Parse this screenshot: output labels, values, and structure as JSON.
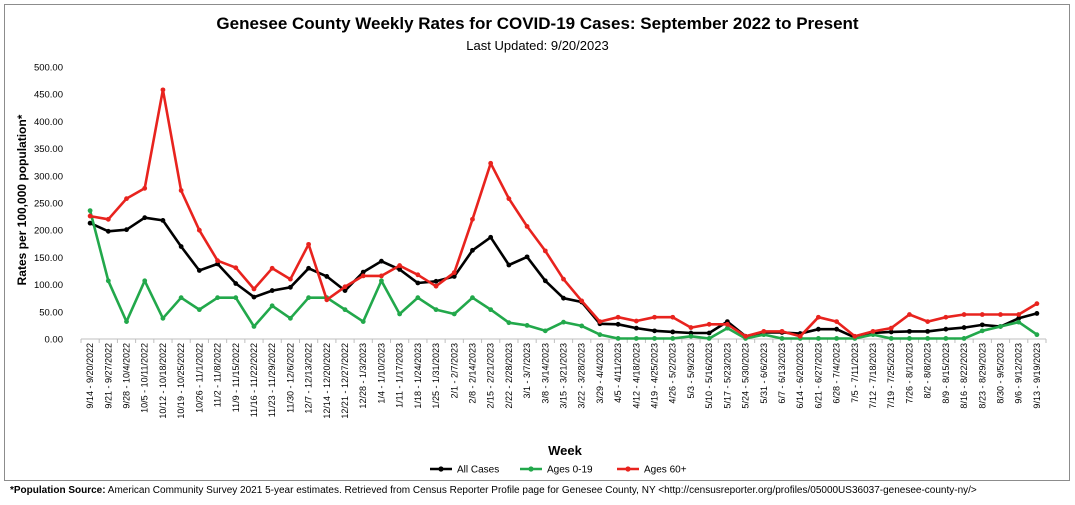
{
  "chart_data": {
    "type": "line",
    "title": "Genesee County Weekly Rates for COVID-19 Cases: September 2022 to Present",
    "subtitle": "Last Updated: 9/20/2023",
    "xlabel": "Week",
    "ylabel": "Rates per 100,000 population*",
    "ylim": [
      0,
      500
    ],
    "yticks": [
      "0.00",
      "50.00",
      "100.00",
      "150.00",
      "200.00",
      "250.00",
      "300.00",
      "350.00",
      "400.00",
      "450.00",
      "500.00"
    ],
    "grid": false,
    "legend": "bottom",
    "categories": [
      "9/14 - 9/20/2022",
      "9/21 - 9/27/2022",
      "9/28 - 10/4/2022",
      "10/5 - 10/11/2022",
      "10/12 - 10/18/2022",
      "10/19 - 10/25/2022",
      "10/26 - 11/1/2022",
      "11/2 - 11/8/2022",
      "11/9 - 11/15/2022",
      "11/16 - 11/22/2022",
      "11/23 - 11/29/2022",
      "11/30 - 12/6/2022",
      "12/7 - 12/13/2022",
      "12/14 - 12/20/2022",
      "12/21 - 12/27/2022",
      "12/28 - 1/3/2023",
      "1/4 - 1/10/2023",
      "1/11 - 1/17/2023",
      "1/18 - 1/24/2023",
      "1/25 - 1/31/2023",
      "2/1 - 2/7/2023",
      "2/8 - 2/14/2023",
      "2/15 - 2/21/2023",
      "2/22 - 2/28/2023",
      "3/1 - 3/7/2023",
      "3/8 - 3/14/2023",
      "3/15 - 3/21/2023",
      "3/22 - 3/28/2023",
      "3/29 - 4/4/2023",
      "4/5 - 4/11/2023",
      "4/12 - 4/18/2023",
      "4/19 - 4/25/2023",
      "4/26 - 5/2/2023",
      "5/3 - 5/9/2023",
      "5/10 - 5/16/2023",
      "5/17 - 5/23/2023",
      "5/24 - 5/30/2023",
      "5/31 - 6/6/2023",
      "6/7 - 6/13/2023",
      "6/14 - 6/20/2023",
      "6/21 - 6/27/2023",
      "6/28 - 7/4/2023",
      "7/5 - 7/11/2023",
      "7/12 - 7/18/2023",
      "7/19 - 7/25/2023",
      "7/26 - 8/1/2023",
      "8/2 - 8/8/2023",
      "8/9 - 8/15/2023",
      "8/16 - 8/22/2023",
      "8/23 - 8/29/2023",
      "8/30 - 9/5/2023",
      "9/6 - 9/12/2023",
      "9/13 - 9/19/2023"
    ],
    "series": [
      {
        "name": "All Cases",
        "color": "#000000",
        "values": [
          213,
          198,
          201,
          223,
          218,
          170,
          126,
          138,
          102,
          77,
          89,
          95,
          130,
          115,
          89,
          123,
          143,
          128,
          103,
          106,
          115,
          163,
          187,
          136,
          151,
          107,
          75,
          68,
          28,
          27,
          20,
          15,
          13,
          11,
          11,
          32,
          5,
          12,
          12,
          10,
          18,
          18,
          3,
          11,
          13,
          14,
          14,
          18,
          21,
          26,
          23,
          38,
          47
        ]
      },
      {
        "name": "Ages 0-19",
        "color": "#22a84b",
        "values": [
          236,
          107,
          32,
          107,
          38,
          76,
          54,
          76,
          76,
          23,
          61,
          38,
          76,
          76,
          54,
          32,
          107,
          46,
          76,
          54,
          46,
          76,
          54,
          30,
          25,
          15,
          31,
          24,
          8,
          1,
          1,
          1,
          1,
          5,
          1,
          20,
          1,
          8,
          1,
          1,
          1,
          1,
          1,
          8,
          1,
          1,
          1,
          1,
          1,
          15,
          23,
          31,
          8
        ]
      },
      {
        "name": "Ages 60+",
        "color": "#e8231e",
        "values": [
          226,
          220,
          258,
          277,
          458,
          273,
          200,
          144,
          131,
          92,
          130,
          110,
          174,
          72,
          96,
          116,
          116,
          135,
          118,
          97,
          122,
          220,
          323,
          258,
          207,
          162,
          110,
          70,
          32,
          40,
          33,
          40,
          40,
          21,
          27,
          27,
          5,
          14,
          14,
          5,
          40,
          32,
          5,
          14,
          20,
          45,
          32,
          40,
          45,
          45,
          45,
          45,
          65
        ]
      }
    ],
    "source_label": "*Population Source:",
    "source_text": "American Community Survey 2021 5-year estimates. Retrieved from Census Reporter Profile page for Genesee County, NY <http://censusreporter.org/profiles/05000US36037-genesee-county-ny/>"
  }
}
